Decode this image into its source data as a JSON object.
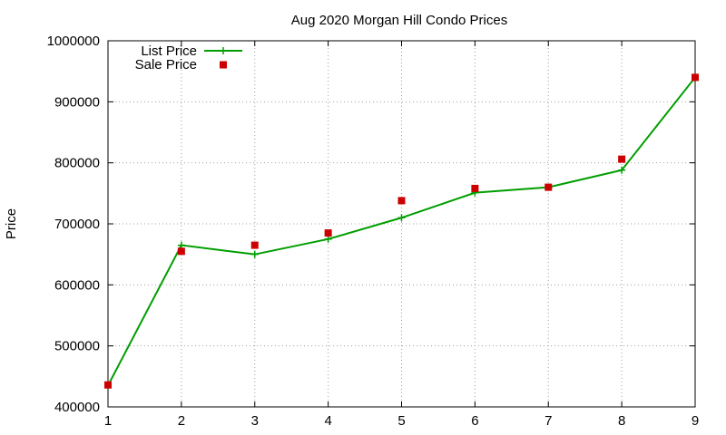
{
  "chart_data": {
    "type": "line",
    "title": "Aug 2020 Morgan Hill Condo Prices",
    "xlabel": "",
    "ylabel": "Price",
    "x": [
      1,
      2,
      3,
      4,
      5,
      6,
      7,
      8,
      9
    ],
    "xlim": [
      1,
      9
    ],
    "ylim": [
      400000,
      1000000
    ],
    "xticks": [
      "1",
      "2",
      "3",
      "4",
      "5",
      "6",
      "7",
      "8",
      "9"
    ],
    "yticks": [
      "400000",
      "500000",
      "600000",
      "700000",
      "800000",
      "900000",
      "1000000"
    ],
    "grid": true,
    "legend_position": "top-left",
    "series": [
      {
        "name": "List Price",
        "style": "line-with-plus-markers",
        "color": "#009e00",
        "values": [
          435000,
          665000,
          650000,
          675000,
          710000,
          751000,
          760000,
          788000,
          940000
        ]
      },
      {
        "name": "Sale Price",
        "style": "square-points",
        "color": "#cc0000",
        "values": [
          436000,
          655000,
          665000,
          685000,
          738000,
          758000,
          760000,
          806000,
          940000
        ]
      }
    ]
  }
}
